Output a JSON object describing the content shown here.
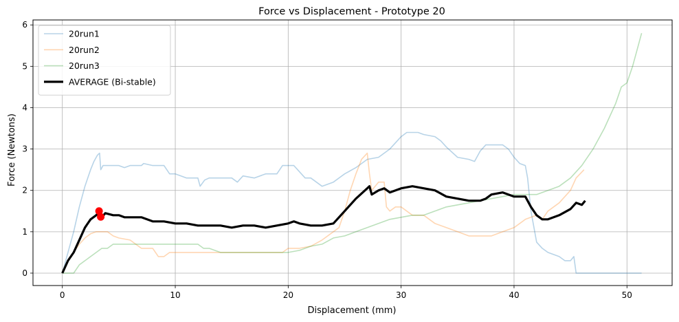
{
  "chart_data": {
    "type": "line",
    "title": "Force vs Displacement - Prototype 20",
    "xlabel": "Displacement (mm)",
    "ylabel": "Force (Newtons)",
    "xlim": [
      -2.6,
      54.0
    ],
    "ylim": [
      -0.3,
      6.12
    ],
    "xticks": [
      0,
      10,
      20,
      30,
      40,
      50
    ],
    "yticks": [
      0,
      1,
      2,
      3,
      4,
      5,
      6
    ],
    "grid": true,
    "legend_position": "top-left",
    "series": [
      {
        "name": "20run1",
        "color": "#1f77b4",
        "opacity": 0.32,
        "width": 1.6,
        "points": [
          [
            0,
            0
          ],
          [
            0.5,
            0.5
          ],
          [
            1,
            1.0
          ],
          [
            1.5,
            1.6
          ],
          [
            2,
            2.1
          ],
          [
            2.5,
            2.5
          ],
          [
            2.8,
            2.7
          ],
          [
            3.1,
            2.85
          ],
          [
            3.3,
            2.9
          ],
          [
            3.4,
            2.5
          ],
          [
            3.6,
            2.6
          ],
          [
            4,
            2.6
          ],
          [
            5,
            2.6
          ],
          [
            5.5,
            2.55
          ],
          [
            6,
            2.6
          ],
          [
            7,
            2.6
          ],
          [
            7.2,
            2.65
          ],
          [
            8,
            2.6
          ],
          [
            9,
            2.6
          ],
          [
            9.5,
            2.4
          ],
          [
            10,
            2.4
          ],
          [
            11,
            2.3
          ],
          [
            12,
            2.3
          ],
          [
            12.2,
            2.1
          ],
          [
            12.6,
            2.25
          ],
          [
            13,
            2.3
          ],
          [
            15,
            2.3
          ],
          [
            15.5,
            2.2
          ],
          [
            16,
            2.35
          ],
          [
            17,
            2.3
          ],
          [
            18,
            2.4
          ],
          [
            19,
            2.4
          ],
          [
            19.5,
            2.6
          ],
          [
            20,
            2.6
          ],
          [
            20.5,
            2.6
          ],
          [
            21,
            2.45
          ],
          [
            21.5,
            2.3
          ],
          [
            22,
            2.3
          ],
          [
            23,
            2.1
          ],
          [
            24,
            2.2
          ],
          [
            25,
            2.4
          ],
          [
            26,
            2.55
          ],
          [
            27,
            2.75
          ],
          [
            28,
            2.8
          ],
          [
            29,
            3.0
          ],
          [
            30,
            3.3
          ],
          [
            30.5,
            3.4
          ],
          [
            31.5,
            3.4
          ],
          [
            32,
            3.35
          ],
          [
            33,
            3.3
          ],
          [
            33.5,
            3.2
          ],
          [
            34,
            3.05
          ],
          [
            35,
            2.8
          ],
          [
            36,
            2.75
          ],
          [
            36.5,
            2.7
          ],
          [
            37,
            2.95
          ],
          [
            37.5,
            3.1
          ],
          [
            38.5,
            3.1
          ],
          [
            39,
            3.1
          ],
          [
            39.5,
            3.0
          ],
          [
            40,
            2.8
          ],
          [
            40.5,
            2.65
          ],
          [
            41,
            2.6
          ],
          [
            41.2,
            2.3
          ],
          [
            41.5,
            1.5
          ],
          [
            42,
            0.75
          ],
          [
            42.5,
            0.6
          ],
          [
            43,
            0.5
          ],
          [
            43.5,
            0.45
          ],
          [
            44,
            0.4
          ],
          [
            44.5,
            0.3
          ],
          [
            45,
            0.3
          ],
          [
            45.3,
            0.4
          ],
          [
            45.5,
            0.0
          ],
          [
            47,
            0.0
          ],
          [
            51.3,
            0.0
          ]
        ]
      },
      {
        "name": "20run2",
        "color": "#ff7f0e",
        "opacity": 0.32,
        "width": 1.6,
        "points": [
          [
            0,
            0
          ],
          [
            0.5,
            0.3
          ],
          [
            1,
            0.5
          ],
          [
            1.5,
            0.7
          ],
          [
            2,
            0.85
          ],
          [
            2.5,
            0.95
          ],
          [
            3,
            1.0
          ],
          [
            4,
            1.0
          ],
          [
            4.5,
            0.9
          ],
          [
            5,
            0.85
          ],
          [
            6,
            0.8
          ],
          [
            7,
            0.6
          ],
          [
            8,
            0.6
          ],
          [
            8.5,
            0.4
          ],
          [
            9,
            0.4
          ],
          [
            9.5,
            0.5
          ],
          [
            12,
            0.5
          ],
          [
            14,
            0.5
          ],
          [
            16,
            0.5
          ],
          [
            18,
            0.5
          ],
          [
            19.5,
            0.5
          ],
          [
            20,
            0.6
          ],
          [
            21,
            0.6
          ],
          [
            22,
            0.65
          ],
          [
            23,
            0.8
          ],
          [
            24,
            1.0
          ],
          [
            24.5,
            1.1
          ],
          [
            25,
            1.5
          ],
          [
            25.5,
            2.0
          ],
          [
            26,
            2.4
          ],
          [
            26.5,
            2.75
          ],
          [
            27,
            2.9
          ],
          [
            27.2,
            2.4
          ],
          [
            27.4,
            2.0
          ],
          [
            28,
            2.2
          ],
          [
            28.5,
            2.2
          ],
          [
            28.7,
            1.6
          ],
          [
            29,
            1.5
          ],
          [
            29.5,
            1.6
          ],
          [
            30,
            1.6
          ],
          [
            30.5,
            1.5
          ],
          [
            31,
            1.4
          ],
          [
            32,
            1.4
          ],
          [
            33,
            1.2
          ],
          [
            34,
            1.1
          ],
          [
            35,
            1.0
          ],
          [
            36,
            0.9
          ],
          [
            37,
            0.9
          ],
          [
            38,
            0.9
          ],
          [
            39,
            1.0
          ],
          [
            40,
            1.1
          ],
          [
            41,
            1.3
          ],
          [
            42,
            1.4
          ],
          [
            42.5,
            1.3
          ],
          [
            43,
            1.5
          ],
          [
            44,
            1.7
          ],
          [
            45,
            2.0
          ],
          [
            45.5,
            2.3
          ],
          [
            46.2,
            2.5
          ]
        ]
      },
      {
        "name": "20run3",
        "color": "#2ca02c",
        "opacity": 0.32,
        "width": 1.6,
        "points": [
          [
            0,
            0
          ],
          [
            1,
            0
          ],
          [
            1.5,
            0.2
          ],
          [
            2,
            0.3
          ],
          [
            2.5,
            0.4
          ],
          [
            3,
            0.5
          ],
          [
            3.5,
            0.6
          ],
          [
            4,
            0.6
          ],
          [
            4.5,
            0.7
          ],
          [
            6,
            0.7
          ],
          [
            7,
            0.7
          ],
          [
            8,
            0.7
          ],
          [
            9,
            0.7
          ],
          [
            10,
            0.7
          ],
          [
            12,
            0.7
          ],
          [
            12.5,
            0.6
          ],
          [
            13,
            0.6
          ],
          [
            14,
            0.5
          ],
          [
            16,
            0.5
          ],
          [
            18,
            0.5
          ],
          [
            19,
            0.5
          ],
          [
            19.5,
            0.5
          ],
          [
            20,
            0.5
          ],
          [
            21,
            0.55
          ],
          [
            22,
            0.65
          ],
          [
            23,
            0.7
          ],
          [
            24,
            0.85
          ],
          [
            25,
            0.9
          ],
          [
            26,
            1.0
          ],
          [
            27,
            1.1
          ],
          [
            28,
            1.2
          ],
          [
            29,
            1.3
          ],
          [
            30,
            1.35
          ],
          [
            31,
            1.4
          ],
          [
            32,
            1.4
          ],
          [
            33,
            1.5
          ],
          [
            34,
            1.6
          ],
          [
            35,
            1.65
          ],
          [
            36,
            1.7
          ],
          [
            37,
            1.75
          ],
          [
            38,
            1.8
          ],
          [
            39,
            1.85
          ],
          [
            40,
            1.9
          ],
          [
            41,
            1.9
          ],
          [
            42,
            1.9
          ],
          [
            43,
            2.0
          ],
          [
            44,
            2.1
          ],
          [
            45,
            2.3
          ],
          [
            46,
            2.6
          ],
          [
            47,
            3.0
          ],
          [
            48,
            3.5
          ],
          [
            49,
            4.1
          ],
          [
            49.5,
            4.5
          ],
          [
            50,
            4.6
          ],
          [
            50.5,
            5.0
          ],
          [
            51,
            5.5
          ],
          [
            51.3,
            5.8
          ]
        ]
      },
      {
        "name": "AVERAGE (Bi-stable)",
        "color": "#000000",
        "opacity": 1,
        "width": 3.2,
        "points": [
          [
            0,
            0
          ],
          [
            0.5,
            0.3
          ],
          [
            1,
            0.5
          ],
          [
            1.5,
            0.8
          ],
          [
            2,
            1.1
          ],
          [
            2.5,
            1.3
          ],
          [
            3,
            1.4
          ],
          [
            3.3,
            1.5
          ],
          [
            3.5,
            1.35
          ],
          [
            3.8,
            1.45
          ],
          [
            4.5,
            1.4
          ],
          [
            5,
            1.4
          ],
          [
            5.5,
            1.35
          ],
          [
            6,
            1.35
          ],
          [
            7,
            1.35
          ],
          [
            7.5,
            1.3
          ],
          [
            8,
            1.25
          ],
          [
            9,
            1.25
          ],
          [
            10,
            1.2
          ],
          [
            11,
            1.2
          ],
          [
            12,
            1.15
          ],
          [
            13,
            1.15
          ],
          [
            14,
            1.15
          ],
          [
            15,
            1.1
          ],
          [
            16,
            1.15
          ],
          [
            17,
            1.15
          ],
          [
            18,
            1.1
          ],
          [
            19,
            1.15
          ],
          [
            20,
            1.2
          ],
          [
            20.5,
            1.25
          ],
          [
            21,
            1.2
          ],
          [
            22,
            1.15
          ],
          [
            23,
            1.15
          ],
          [
            24,
            1.2
          ],
          [
            25,
            1.5
          ],
          [
            26,
            1.8
          ],
          [
            27,
            2.05
          ],
          [
            27.2,
            2.1
          ],
          [
            27.4,
            1.9
          ],
          [
            28,
            2.0
          ],
          [
            28.5,
            2.05
          ],
          [
            29,
            1.95
          ],
          [
            30,
            2.05
          ],
          [
            31,
            2.1
          ],
          [
            32,
            2.05
          ],
          [
            33,
            2.0
          ],
          [
            34,
            1.85
          ],
          [
            35,
            1.8
          ],
          [
            36,
            1.75
          ],
          [
            37,
            1.75
          ],
          [
            37.5,
            1.8
          ],
          [
            38,
            1.9
          ],
          [
            39,
            1.95
          ],
          [
            40,
            1.85
          ],
          [
            41,
            1.85
          ],
          [
            41.5,
            1.6
          ],
          [
            42,
            1.4
          ],
          [
            42.5,
            1.3
          ],
          [
            43,
            1.3
          ],
          [
            44,
            1.4
          ],
          [
            45,
            1.55
          ],
          [
            45.5,
            1.7
          ],
          [
            46,
            1.65
          ],
          [
            46.3,
            1.75
          ]
        ]
      }
    ],
    "markers": [
      {
        "color": "#ff0000",
        "points": [
          [
            3.25,
            1.5
          ],
          [
            3.4,
            1.36
          ]
        ]
      }
    ]
  }
}
